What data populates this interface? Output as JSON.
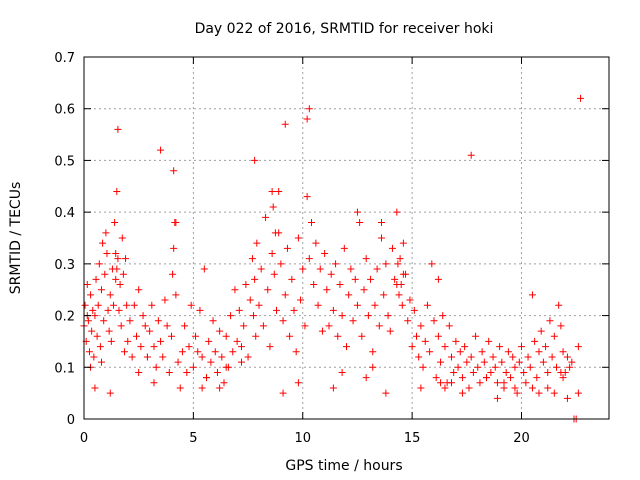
{
  "chart_data": {
    "type": "scatter",
    "title": "Day 022 of 2016, SRMTID for receiver hoki",
    "xlabel": "GPS time / hours",
    "ylabel": "SRMTID / TECUs",
    "xlim": [
      0,
      24
    ],
    "ylim": [
      0,
      0.7
    ],
    "xticks": [
      0,
      5,
      10,
      15,
      20
    ],
    "xtick_labels": [
      "0",
      "5",
      "10",
      "15",
      "20"
    ],
    "yticks": [
      0,
      0.1,
      0.2,
      0.3,
      0.4,
      0.5,
      0.6,
      0.7
    ],
    "ytick_labels": [
      "0",
      "0.1",
      "0.2",
      "0.3",
      "0.4",
      "0.5",
      "0.6",
      "0.7"
    ],
    "grid": true,
    "marker": "plus",
    "color": "#ff0000",
    "series": [
      {
        "name": "SRMTID",
        "x": [
          0.0,
          0.05,
          0.1,
          0.15,
          0.2,
          0.25,
          0.3,
          0.35,
          0.4,
          0.45,
          0.5,
          0.55,
          0.6,
          0.65,
          0.7,
          0.75,
          0.8,
          0.85,
          0.9,
          0.95,
          1.0,
          1.05,
          1.1,
          1.15,
          1.2,
          1.25,
          1.3,
          1.35,
          1.4,
          1.45,
          1.5,
          1.55,
          1.6,
          1.65,
          1.7,
          1.75,
          1.8,
          1.85,
          1.9,
          1.95,
          2.0,
          2.1,
          2.2,
          2.3,
          2.4,
          2.5,
          2.6,
          2.7,
          2.8,
          2.9,
          3.0,
          3.1,
          3.2,
          3.3,
          3.4,
          3.5,
          3.6,
          3.7,
          3.8,
          3.9,
          4.0,
          4.05,
          4.1,
          4.15,
          4.2,
          4.3,
          4.4,
          4.5,
          4.6,
          4.7,
          4.8,
          4.9,
          5.0,
          5.1,
          5.2,
          5.3,
          5.4,
          5.5,
          5.6,
          5.7,
          5.8,
          5.9,
          6.0,
          6.1,
          6.2,
          6.3,
          6.4,
          6.5,
          6.6,
          6.7,
          6.8,
          6.9,
          7.0,
          7.1,
          7.2,
          7.3,
          7.4,
          7.5,
          7.6,
          7.7,
          7.75,
          7.8,
          7.85,
          7.9,
          8.0,
          8.1,
          8.2,
          8.3,
          8.4,
          8.5,
          8.6,
          8.7,
          8.75,
          8.8,
          8.9,
          9.0,
          9.1,
          9.2,
          9.3,
          9.4,
          9.5,
          9.6,
          9.7,
          9.8,
          9.9,
          10.0,
          10.1,
          10.2,
          10.3,
          10.4,
          10.5,
          10.6,
          10.7,
          10.8,
          10.9,
          11.0,
          11.1,
          11.2,
          11.3,
          11.4,
          11.5,
          11.6,
          11.7,
          11.8,
          11.9,
          12.0,
          12.1,
          12.2,
          12.3,
          12.4,
          12.5,
          12.6,
          12.7,
          12.8,
          12.9,
          13.0,
          13.1,
          13.2,
          13.3,
          13.4,
          13.5,
          13.6,
          13.7,
          13.8,
          13.9,
          14.0,
          14.1,
          14.2,
          14.3,
          14.35,
          14.4,
          14.45,
          14.5,
          14.55,
          14.6,
          14.7,
          14.8,
          14.9,
          15.0,
          15.1,
          15.2,
          15.3,
          15.4,
          15.5,
          15.6,
          15.7,
          15.8,
          15.9,
          16.0,
          16.1,
          16.2,
          16.3,
          16.4,
          16.5,
          16.6,
          16.7,
          16.8,
          16.9,
          17.0,
          17.1,
          17.2,
          17.3,
          17.4,
          17.5,
          17.6,
          17.7,
          17.8,
          17.9,
          18.0,
          18.1,
          18.2,
          18.3,
          18.4,
          18.5,
          18.6,
          18.7,
          18.8,
          18.9,
          19.0,
          19.1,
          19.2,
          19.3,
          19.4,
          19.5,
          19.6,
          19.7,
          19.8,
          19.9,
          20.0,
          20.1,
          20.2,
          20.3,
          20.4,
          20.5,
          20.6,
          20.7,
          20.8,
          20.9,
          21.0,
          21.1,
          21.2,
          21.3,
          21.4,
          21.5,
          21.6,
          21.7,
          21.8,
          21.9,
          22.0,
          22.1,
          22.2,
          22.3,
          22.4,
          22.5,
          22.6,
          22.7,
          9.2,
          17.7,
          0.15,
          1.45,
          1.5,
          1.55,
          3.5,
          4.1,
          4.2,
          7.8,
          8.6,
          8.65,
          8.9,
          10.2,
          10.3,
          12.5,
          13.6,
          14.3,
          14.6,
          16.2,
          16.3,
          20.5,
          21.8,
          21.9,
          0.3,
          0.8,
          1.2,
          2.5,
          2.9,
          5.4,
          5.6,
          6.5,
          7.2,
          9.8,
          11.8,
          12.9,
          13.2,
          15.4,
          16.8,
          17.3,
          18.4,
          19.2,
          19.7,
          20.8,
          21.2,
          22.1,
          22.6,
          0.5,
          3.2,
          6.2,
          9.1,
          11.4,
          13.8,
          16.5,
          18.9,
          21.5
        ],
        "y": [
          0.18,
          0.22,
          0.15,
          0.26,
          0.19,
          0.13,
          0.24,
          0.17,
          0.21,
          0.12,
          0.2,
          0.27,
          0.16,
          0.22,
          0.3,
          0.14,
          0.25,
          0.34,
          0.19,
          0.28,
          0.36,
          0.32,
          0.21,
          0.17,
          0.24,
          0.15,
          0.29,
          0.22,
          0.38,
          0.27,
          0.44,
          0.31,
          0.21,
          0.26,
          0.18,
          0.35,
          0.28,
          0.13,
          0.31,
          0.22,
          0.15,
          0.19,
          0.12,
          0.22,
          0.16,
          0.25,
          0.14,
          0.2,
          0.18,
          0.12,
          0.17,
          0.22,
          0.14,
          0.1,
          0.19,
          0.15,
          0.12,
          0.23,
          0.18,
          0.09,
          0.16,
          0.28,
          0.33,
          0.38,
          0.24,
          0.11,
          0.06,
          0.13,
          0.18,
          0.09,
          0.14,
          0.22,
          0.1,
          0.16,
          0.13,
          0.21,
          0.12,
          0.29,
          0.08,
          0.15,
          0.11,
          0.19,
          0.13,
          0.09,
          0.17,
          0.12,
          0.07,
          0.16,
          0.1,
          0.2,
          0.13,
          0.25,
          0.15,
          0.21,
          0.14,
          0.18,
          0.26,
          0.12,
          0.23,
          0.31,
          0.2,
          0.27,
          0.16,
          0.34,
          0.22,
          0.29,
          0.18,
          0.39,
          0.25,
          0.14,
          0.32,
          0.28,
          0.36,
          0.21,
          0.44,
          0.3,
          0.19,
          0.24,
          0.33,
          0.16,
          0.27,
          0.21,
          0.13,
          0.35,
          0.23,
          0.29,
          0.18,
          0.43,
          0.31,
          0.38,
          0.26,
          0.34,
          0.22,
          0.29,
          0.17,
          0.32,
          0.25,
          0.18,
          0.28,
          0.21,
          0.3,
          0.16,
          0.26,
          0.2,
          0.33,
          0.14,
          0.24,
          0.29,
          0.19,
          0.27,
          0.22,
          0.38,
          0.16,
          0.25,
          0.31,
          0.2,
          0.27,
          0.13,
          0.22,
          0.29,
          0.18,
          0.35,
          0.24,
          0.3,
          0.2,
          0.17,
          0.33,
          0.27,
          0.4,
          0.3,
          0.24,
          0.31,
          0.26,
          0.22,
          0.34,
          0.28,
          0.19,
          0.23,
          0.14,
          0.21,
          0.16,
          0.12,
          0.18,
          0.1,
          0.15,
          0.22,
          0.13,
          0.3,
          0.19,
          0.08,
          0.16,
          0.11,
          0.2,
          0.14,
          0.07,
          0.18,
          0.12,
          0.09,
          0.15,
          0.1,
          0.13,
          0.08,
          0.14,
          0.11,
          0.06,
          0.12,
          0.09,
          0.16,
          0.1,
          0.07,
          0.13,
          0.11,
          0.08,
          0.15,
          0.09,
          0.12,
          0.1,
          0.07,
          0.14,
          0.11,
          0.06,
          0.09,
          0.13,
          0.08,
          0.12,
          0.1,
          0.05,
          0.11,
          0.14,
          0.09,
          0.07,
          0.12,
          0.1,
          0.24,
          0.15,
          0.08,
          0.13,
          0.17,
          0.11,
          0.14,
          0.09,
          0.19,
          0.12,
          0.16,
          0.1,
          0.22,
          0.18,
          0.13,
          0.09,
          0.12,
          0.1,
          0.11,
          0.0,
          0.0,
          0.14,
          0.62,
          0.57,
          0.51,
          0.2,
          0.32,
          0.29,
          0.56,
          0.52,
          0.48,
          0.38,
          0.5,
          0.44,
          0.41,
          0.36,
          0.58,
          0.6,
          0.4,
          0.38,
          0.26,
          0.28,
          0.27,
          0.07,
          0.06,
          0.09,
          0.08,
          0.1,
          0.11,
          0.05,
          0.09,
          0.12,
          0.06,
          0.08,
          0.1,
          0.11,
          0.07,
          0.09,
          0.08,
          0.1,
          0.06,
          0.07,
          0.05,
          0.08,
          0.07,
          0.06,
          0.05,
          0.06,
          0.04,
          0.05,
          0.06,
          0.07,
          0.06,
          0.05,
          0.06,
          0.05,
          0.06,
          0.04,
          0.05
        ]
      }
    ]
  }
}
